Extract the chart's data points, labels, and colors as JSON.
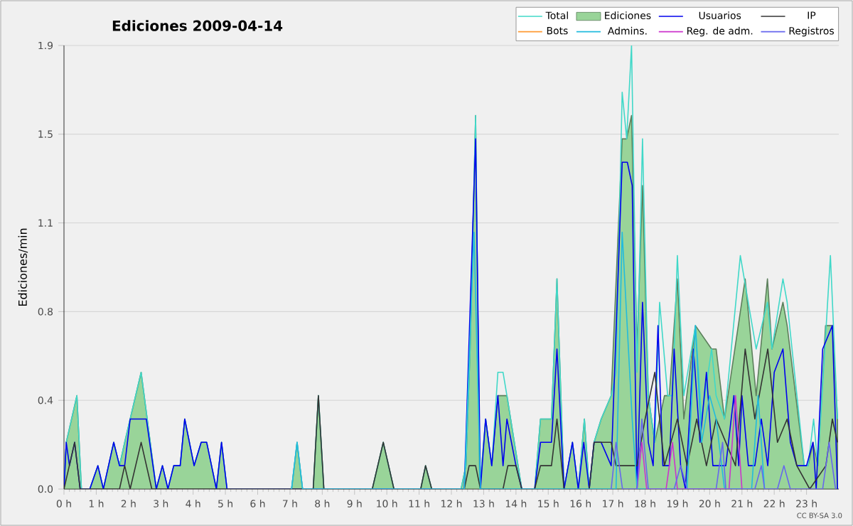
{
  "chart_data": {
    "type": "line",
    "title": "Ediciones  2009-04-14",
    "ylabel": "Ediciones/min",
    "annotations": [
      "CC BY-SA 3.0"
    ],
    "xlim": [
      0,
      24
    ],
    "ylim": [
      0,
      1.9
    ],
    "xticks": [
      {
        "value": 0,
        "label": "0 h"
      },
      {
        "value": 1,
        "label": "1 h"
      },
      {
        "value": 2,
        "label": "2 h"
      },
      {
        "value": 3,
        "label": "3 h"
      },
      {
        "value": 4,
        "label": "4 h"
      },
      {
        "value": 5,
        "label": "5 h"
      },
      {
        "value": 6,
        "label": "6 h"
      },
      {
        "value": 7,
        "label": "7 h"
      },
      {
        "value": 8,
        "label": "8 h"
      },
      {
        "value": 9,
        "label": "9 h"
      },
      {
        "value": 10,
        "label": "10 h"
      },
      {
        "value": 11,
        "label": "11 h"
      },
      {
        "value": 12,
        "label": "12 h"
      },
      {
        "value": 13,
        "label": "13 h"
      },
      {
        "value": 14,
        "label": "14 h"
      },
      {
        "value": 15,
        "label": "15 h"
      },
      {
        "value": 16,
        "label": "16 h"
      },
      {
        "value": 17,
        "label": "17 h"
      },
      {
        "value": 18,
        "label": "18 h"
      },
      {
        "value": 19,
        "label": "19 h"
      },
      {
        "value": 20,
        "label": "20 h"
      },
      {
        "value": 21,
        "label": "21 h"
      },
      {
        "value": 22,
        "label": "22 h"
      },
      {
        "value": 23,
        "label": "23 h"
      }
    ],
    "yticks": [
      {
        "value": 0,
        "label": "0.0"
      },
      {
        "value": 0.38,
        "label": "0.4"
      },
      {
        "value": 0.76,
        "label": "0.8"
      },
      {
        "value": 1.14,
        "label": "1.1"
      },
      {
        "value": 1.52,
        "label": "1.5"
      },
      {
        "value": 1.9,
        "label": "1.9"
      }
    ],
    "grid": "y",
    "legend": "top right",
    "series": [
      {
        "name": "Total",
        "color": "#40d8c8",
        "x": [
          0,
          0.07,
          0.4,
          0.54,
          0.8,
          1.05,
          1.22,
          1.54,
          1.72,
          1.88,
          2.39,
          2.86,
          3.05,
          3.22,
          3.4,
          3.6,
          3.74,
          4.03,
          4.25,
          4.42,
          4.72,
          4.88,
          5.05,
          7.05,
          7.22,
          7.39,
          7.72,
          7.88,
          8.05,
          9.55,
          9.89,
          10.22,
          11.05,
          11.2,
          11.39,
          12.3,
          12.45,
          12.58,
          12.75,
          12.88,
          13.06,
          13.25,
          13.44,
          13.6,
          13.72,
          14.18,
          14.58,
          14.76,
          15.1,
          15.27,
          15.49,
          15.75,
          15.93,
          16.12,
          16.27,
          16.42,
          16.64,
          16.95,
          17.1,
          17.29,
          17.43,
          17.58,
          17.75,
          17.92,
          18.1,
          18.3,
          18.45,
          18.7,
          18.85,
          19.0,
          19.2,
          19.56,
          19.75,
          20.06,
          20.2,
          20.46,
          20.95,
          21.44,
          21.79,
          21.93,
          22.27,
          22.4,
          22.93,
          23.05,
          23.22,
          23.35,
          23.74,
          23.96
        ],
        "values": [
          0,
          0.2,
          0.4,
          0,
          0,
          0.1,
          0,
          0.2,
          0.1,
          0.2,
          0.5,
          0,
          0.1,
          0,
          0.1,
          0.1,
          0.3,
          0.1,
          0.2,
          0.2,
          0,
          0.2,
          0,
          0,
          0.2,
          0,
          0,
          0.4,
          0,
          0,
          0.2,
          0,
          0,
          0.1,
          0,
          0,
          0.1,
          0.6,
          1.6,
          0,
          0.3,
          0.1,
          0.5,
          0.5,
          0.4,
          0,
          0,
          0.3,
          0.3,
          0.9,
          0,
          0.2,
          0,
          0.3,
          0,
          0.2,
          0.3,
          0.4,
          0.5,
          1.7,
          1.5,
          1.9,
          0.5,
          1.5,
          0.4,
          0.2,
          0.8,
          0.4,
          0.4,
          1.0,
          0.4,
          0.7,
          0.3,
          0.6,
          0.4,
          0.3,
          1.0,
          0.6,
          0.8,
          0.6,
          0.9,
          0.8,
          0.1,
          0.1,
          0.3,
          0.1,
          1.0,
          0.3
        ]
      },
      {
        "name": "Ediciones",
        "type": "area",
        "color": "#99d499",
        "x": [
          0,
          0.07,
          0.4,
          0.54,
          0.8,
          1.05,
          1.22,
          1.54,
          1.72,
          1.88,
          2.39,
          2.86,
          3.05,
          3.22,
          3.4,
          3.6,
          3.74,
          4.03,
          4.25,
          4.42,
          4.72,
          4.88,
          5.05,
          7.05,
          7.22,
          7.39,
          7.72,
          7.88,
          8.05,
          9.55,
          9.89,
          10.22,
          11.05,
          11.2,
          11.39,
          12.3,
          12.45,
          12.58,
          12.75,
          12.88,
          13.06,
          13.25,
          13.44,
          13.72,
          14.18,
          14.58,
          14.76,
          15.1,
          15.27,
          15.49,
          15.75,
          15.93,
          16.12,
          16.27,
          16.42,
          16.64,
          16.95,
          17.29,
          17.43,
          17.58,
          17.75,
          17.92,
          18.1,
          18.3,
          18.6,
          18.75,
          19.0,
          19.2,
          19.56,
          20.06,
          20.2,
          20.46,
          21.1,
          21.44,
          21.79,
          21.93,
          22.27,
          22.4,
          22.93,
          23.05,
          23.2,
          23.35,
          23.59,
          23.8,
          23.96
        ],
        "values": [
          0,
          0.2,
          0.4,
          0,
          0,
          0.1,
          0,
          0.2,
          0.1,
          0.2,
          0.5,
          0,
          0.1,
          0,
          0.1,
          0.1,
          0.3,
          0.1,
          0.2,
          0.2,
          0,
          0.2,
          0,
          0,
          0.2,
          0,
          0,
          0.4,
          0,
          0,
          0.2,
          0,
          0,
          0.1,
          0,
          0,
          0.1,
          0.6,
          1.6,
          0,
          0.3,
          0.1,
          0.4,
          0.4,
          0,
          0,
          0.3,
          0.3,
          0.9,
          0,
          0.2,
          0,
          0.3,
          0,
          0.2,
          0.3,
          0.4,
          1.5,
          1.5,
          1.6,
          0.6,
          1.3,
          0.4,
          0.2,
          0.4,
          0.4,
          0.9,
          0.3,
          0.7,
          0.6,
          0.6,
          0.3,
          0.9,
          0.4,
          0.9,
          0.6,
          0.8,
          0.7,
          0.1,
          0.1,
          0.2,
          0.1,
          0.7,
          0.7,
          0.3
        ]
      },
      {
        "name": "Usuarios",
        "color": "#0000ee",
        "x": [
          0,
          0.07,
          0.17,
          0.33,
          0.5,
          0.8,
          1.05,
          1.22,
          1.54,
          1.72,
          1.88,
          2.05,
          2.55,
          2.86,
          3.05,
          3.22,
          3.4,
          3.6,
          3.74,
          4.03,
          4.25,
          4.42,
          4.72,
          4.88,
          5.05,
          12.4,
          12.75,
          12.9,
          13.06,
          13.25,
          13.44,
          13.6,
          13.72,
          14.0,
          14.18,
          14.58,
          14.76,
          15.1,
          15.27,
          15.49,
          15.75,
          15.93,
          16.1,
          16.27,
          16.42,
          16.64,
          16.95,
          17.29,
          17.45,
          17.6,
          17.75,
          17.92,
          18.1,
          18.25,
          18.4,
          18.55,
          18.75,
          18.9,
          19.1,
          19.25,
          19.5,
          19.7,
          19.9,
          20.1,
          20.3,
          20.5,
          20.75,
          20.9,
          21.0,
          21.2,
          21.4,
          21.6,
          21.8,
          22.0,
          22.27,
          22.5,
          22.7,
          23.0,
          23.2,
          23.3,
          23.5,
          23.8,
          23.96
        ],
        "values": [
          0,
          0.2,
          0.1,
          0.2,
          0,
          0,
          0.1,
          0,
          0.2,
          0.1,
          0.1,
          0.3,
          0.3,
          0,
          0.1,
          0,
          0.1,
          0.1,
          0.3,
          0.1,
          0.2,
          0.2,
          0,
          0.2,
          0,
          0,
          1.5,
          0,
          0.3,
          0.1,
          0.4,
          0.1,
          0.3,
          0.1,
          0,
          0,
          0.2,
          0.2,
          0.6,
          0,
          0.2,
          0,
          0.2,
          0,
          0.2,
          0.2,
          0.1,
          1.4,
          1.4,
          1.3,
          0,
          0.8,
          0.2,
          0.1,
          0.7,
          0.1,
          0.1,
          0.6,
          0.1,
          0,
          0.6,
          0.2,
          0.5,
          0.1,
          0.1,
          0.1,
          0.4,
          0.1,
          0.4,
          0.1,
          0.1,
          0.3,
          0.1,
          0.5,
          0.6,
          0.2,
          0.1,
          0.1,
          0.2,
          0,
          0.6,
          0.7,
          0
        ]
      },
      {
        "name": "IP",
        "color": "#333333",
        "x": [
          0,
          0.33,
          0.5,
          1.72,
          1.88,
          2.05,
          2.39,
          2.72,
          7.72,
          7.88,
          8.05,
          9.55,
          9.89,
          10.22,
          11.05,
          11.2,
          11.39,
          12.4,
          12.55,
          12.75,
          12.9,
          13.6,
          13.75,
          14.0,
          14.18,
          14.58,
          14.76,
          15.1,
          15.27,
          15.49,
          16.27,
          16.42,
          16.64,
          16.95,
          17.1,
          17.45,
          17.75,
          18.0,
          18.3,
          18.6,
          19.0,
          19.3,
          19.6,
          19.9,
          20.2,
          20.5,
          20.8,
          21.1,
          21.4,
          21.8,
          22.1,
          22.4,
          22.7,
          23.1,
          23.6,
          23.8,
          23.96
        ],
        "values": [
          0,
          0.2,
          0,
          0,
          0.1,
          0,
          0.2,
          0,
          0,
          0.4,
          0,
          0,
          0.2,
          0,
          0,
          0.1,
          0,
          0,
          0.1,
          0.1,
          0,
          0,
          0.1,
          0.1,
          0,
          0,
          0.1,
          0.1,
          0.3,
          0,
          0,
          0.2,
          0.2,
          0.2,
          0.1,
          0.1,
          0.1,
          0.3,
          0.5,
          0.1,
          0.3,
          0.1,
          0.3,
          0.1,
          0.3,
          0.2,
          0.1,
          0.6,
          0.3,
          0.6,
          0.2,
          0.3,
          0.1,
          0,
          0.1,
          0.3,
          0.2
        ]
      },
      {
        "name": "Bots",
        "color": "#ff9933"
      },
      {
        "name": "Admins.",
        "color": "#22bbdd",
        "x": [
          7.05,
          7.22,
          7.39,
          12.4,
          12.7,
          12.9,
          17.1,
          17.29,
          17.6,
          17.75,
          19.3,
          19.56,
          19.75,
          20.0,
          20.2,
          20.46,
          21.3,
          21.5,
          21.7
        ],
        "values": [
          0,
          0.2,
          0,
          0,
          1.1,
          0,
          0,
          1.1,
          0.3,
          0,
          0,
          0.7,
          0.2,
          0.4,
          0.3,
          0,
          0,
          0.4,
          0
        ]
      },
      {
        "name": "Reg. de adm.",
        "color": "#cc33cc",
        "x": [
          17.75,
          17.9,
          18.05,
          18.65,
          18.85,
          19.0,
          20.6,
          20.8,
          21.0
        ],
        "values": [
          0,
          0.2,
          0,
          0,
          0.2,
          0,
          0,
          0.4,
          0
        ]
      },
      {
        "name": "Registros",
        "color": "#6666ee",
        "x": [
          16.95,
          17.1,
          17.3,
          17.75,
          17.9,
          18.1,
          18.9,
          19.1,
          19.3,
          20.2,
          20.4,
          20.5,
          21.4,
          21.6,
          21.7,
          22.1,
          22.3,
          22.5,
          23.5,
          23.7,
          23.9
        ],
        "values": [
          0,
          0.2,
          0,
          0,
          0.3,
          0,
          0,
          0.1,
          0,
          0,
          0.2,
          0,
          0,
          0.1,
          0,
          0,
          0.1,
          0,
          0,
          0.2,
          0
        ]
      }
    ]
  }
}
